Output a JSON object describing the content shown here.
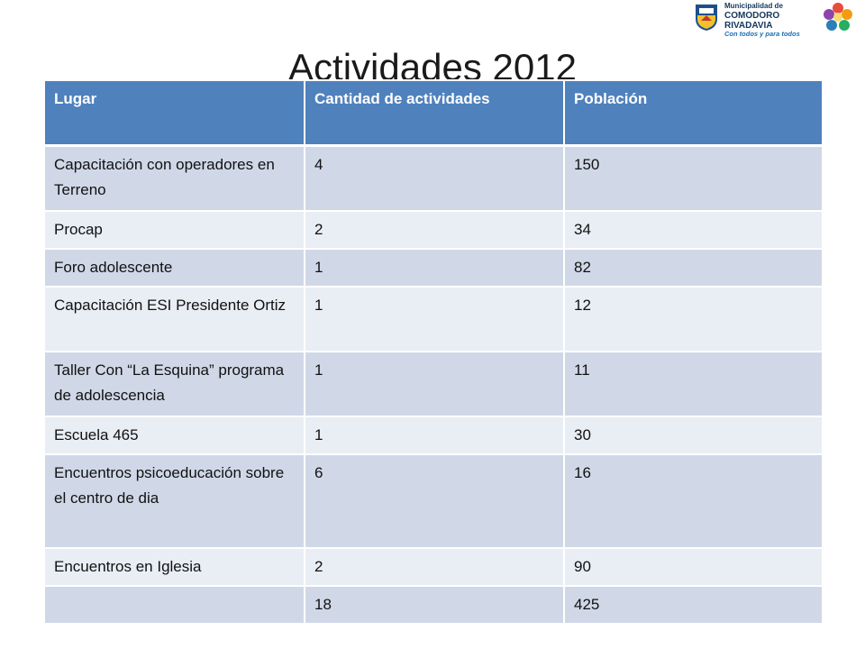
{
  "slide": {
    "title": "Actividades 2012"
  },
  "logo": {
    "line1": "Municipalidad de",
    "line2": "COMODORO RIVADAVIA",
    "line3": "Con todos y para todos"
  },
  "table": {
    "headers": [
      "Lugar",
      "Cantidad de actividades",
      "Población"
    ],
    "rows": [
      [
        "Capacitación con operadores en Terreno",
        "4",
        "150"
      ],
      [
        "Procap",
        "2",
        "34"
      ],
      [
        "Foro adolescente",
        "1",
        "82"
      ],
      [
        "Capacitación ESI Presidente Ortiz",
        "1",
        "12"
      ],
      [
        "Taller Con “La Esquina” programa de adolescencia",
        "1",
        "11"
      ],
      [
        "Escuela 465",
        "1",
        "30"
      ],
      [
        "Encuentros psicoeducación sobre el centro de dia",
        "6",
        "16"
      ],
      [
        "Encuentros en Iglesia",
        "2",
        "90"
      ],
      [
        "",
        "18",
        "425"
      ]
    ]
  },
  "colors": {
    "header_bg": "#4f81bd",
    "row_odd_bg": "#d0d8e8",
    "row_even_bg": "#e9edf4"
  }
}
